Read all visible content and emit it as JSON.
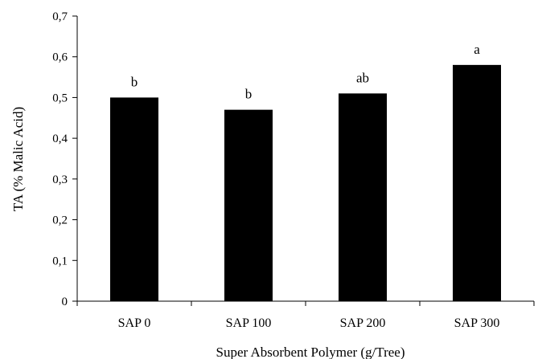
{
  "chart_data": {
    "type": "bar",
    "categories": [
      "SAP 0",
      "SAP 100",
      "SAP 200",
      "SAP 300"
    ],
    "values": [
      0.5,
      0.47,
      0.51,
      0.58
    ],
    "data_labels": [
      "b",
      "b",
      "ab",
      "a"
    ],
    "xlabel": "Super Absorbent Polymer (g/Tree)",
    "ylabel": "TA (% Malic Acid)",
    "ylim": [
      0,
      0.7
    ],
    "yticks": [
      0,
      0.1,
      0.2,
      0.3,
      0.4,
      0.5,
      0.6,
      0.7
    ],
    "ytick_labels": [
      "0",
      "0,1",
      "0,2",
      "0,3",
      "0,4",
      "0,5",
      "0,6",
      "0,7"
    ],
    "grid": false,
    "legend": "none",
    "bar_color": "#000000"
  }
}
